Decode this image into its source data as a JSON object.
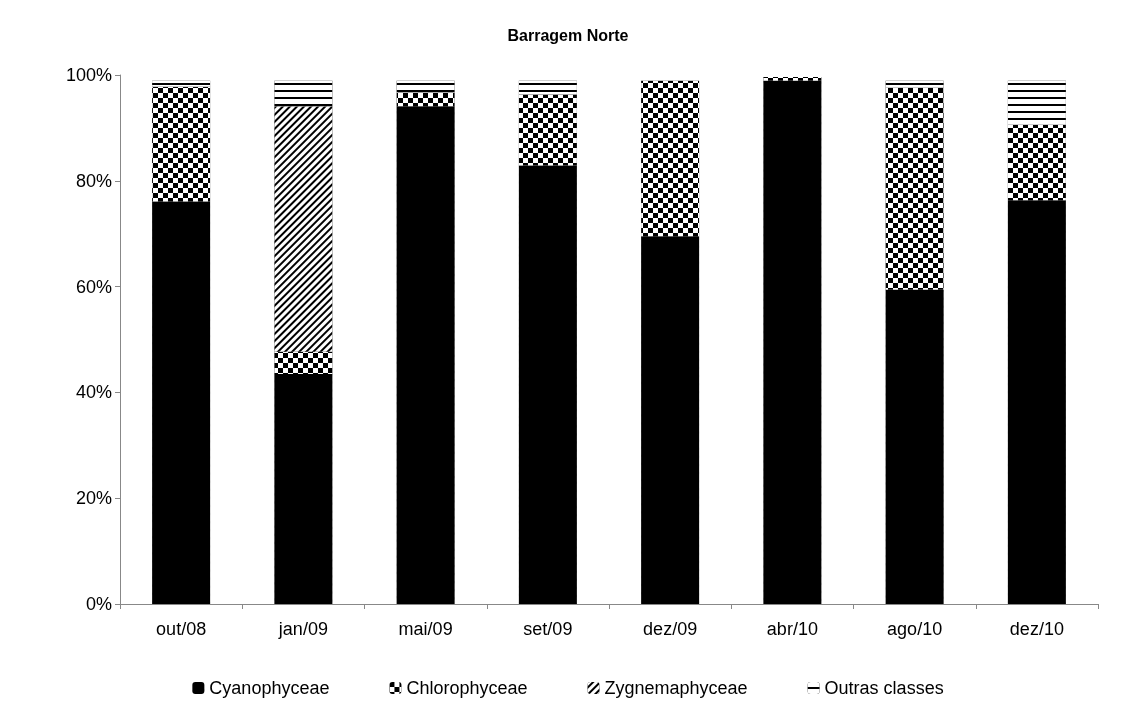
{
  "chart_data": {
    "type": "bar",
    "title": "Barragem Norte",
    "stacked": true,
    "categories": [
      "out/08",
      "jan/09",
      "mai/09",
      "set/09",
      "dez/09",
      "abr/10",
      "ago/10",
      "dez/10"
    ],
    "series": [
      {
        "name": "Cyanophyceae",
        "color": "#000000",
        "values": [
          76.1,
          43.5,
          94.1,
          82.9,
          69.5,
          98.9,
          59.4,
          76.3
        ]
      },
      {
        "name": "Chlorophyceae",
        "color": "#000000",
        "values": [
          21.7,
          4.2,
          2.6,
          13.4,
          29.4,
          0.7,
          38.2,
          14.3
        ]
      },
      {
        "name": "Zygnemaphyceae",
        "color": "#000000",
        "values": [
          0,
          46.4,
          0,
          0,
          0,
          0,
          0,
          0
        ]
      },
      {
        "name": "Outras classes",
        "color": "#000000",
        "values": [
          1.1,
          4.8,
          2.2,
          2.6,
          0,
          0,
          1.3,
          8.3
        ]
      }
    ],
    "ylim": [
      0,
      100
    ],
    "yticks": [
      {
        "value": 0,
        "label": "0%"
      },
      {
        "value": 20,
        "label": "20%"
      },
      {
        "value": 40,
        "label": "40%"
      },
      {
        "value": 60,
        "label": "60%"
      },
      {
        "value": 80,
        "label": "80%"
      },
      {
        "value": 100,
        "label": "100%"
      }
    ],
    "grid": false,
    "legend": "bottom"
  }
}
